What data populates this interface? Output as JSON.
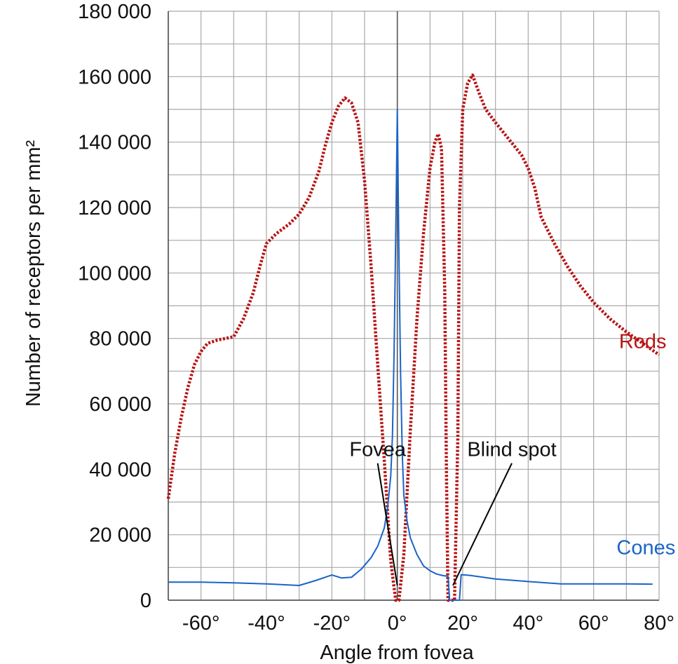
{
  "chart_data": {
    "type": "line",
    "title": "",
    "xlabel": "Angle from fovea",
    "ylabel": "Number of receptors per mm²",
    "xlim": [
      -70,
      80
    ],
    "ylim": [
      0,
      180000
    ],
    "grid": true,
    "x_ticks": [
      {
        "value": -60,
        "label": "-60°"
      },
      {
        "value": -40,
        "label": "-40°"
      },
      {
        "value": -20,
        "label": "-20°"
      },
      {
        "value": 0,
        "label": "0°"
      },
      {
        "value": 20,
        "label": "20°"
      },
      {
        "value": 40,
        "label": "40°"
      },
      {
        "value": 60,
        "label": "60°"
      },
      {
        "value": 80,
        "label": "80°"
      }
    ],
    "y_ticks": [
      {
        "value": 0,
        "label": "0"
      },
      {
        "value": 20000,
        "label": "20 000"
      },
      {
        "value": 40000,
        "label": "40 000"
      },
      {
        "value": 60000,
        "label": "60 000"
      },
      {
        "value": 80000,
        "label": "80 000"
      },
      {
        "value": 100000,
        "label": "100 000"
      },
      {
        "value": 120000,
        "label": "120 000"
      },
      {
        "value": 140000,
        "label": "140 000"
      },
      {
        "value": 160000,
        "label": "160 000"
      },
      {
        "value": 180000,
        "label": "180 000"
      }
    ],
    "series": [
      {
        "name": "Rods",
        "color": "#b81414",
        "style": "dotted",
        "points": [
          [
            -70,
            31000
          ],
          [
            -68,
            45000
          ],
          [
            -66,
            56000
          ],
          [
            -64,
            65000
          ],
          [
            -62,
            72000
          ],
          [
            -60,
            76000
          ],
          [
            -58,
            78500
          ],
          [
            -55,
            79500
          ],
          [
            -50,
            80500
          ],
          [
            -47,
            86000
          ],
          [
            -44,
            94000
          ],
          [
            -42,
            102000
          ],
          [
            -40,
            109000
          ],
          [
            -37,
            112000
          ],
          [
            -33,
            115000
          ],
          [
            -30,
            118000
          ],
          [
            -27,
            123000
          ],
          [
            -24,
            131000
          ],
          [
            -22,
            139000
          ],
          [
            -20,
            146000
          ],
          [
            -18,
            151000
          ],
          [
            -16,
            153500
          ],
          [
            -14,
            152000
          ],
          [
            -12,
            146000
          ],
          [
            -10,
            128000
          ],
          [
            -8,
            102000
          ],
          [
            -6,
            72000
          ],
          [
            -4,
            43000
          ],
          [
            -2,
            12000
          ],
          [
            -0.5,
            0
          ],
          [
            0.5,
            0
          ],
          [
            2,
            14000
          ],
          [
            4,
            52000
          ],
          [
            6,
            86000
          ],
          [
            8,
            112000
          ],
          [
            10,
            132000
          ],
          [
            11.5,
            140000
          ],
          [
            12.5,
            142500
          ],
          [
            13.5,
            138000
          ],
          [
            14.5,
            95000
          ],
          [
            15,
            40000
          ],
          [
            15.5,
            0
          ],
          [
            17.5,
            0
          ],
          [
            18.5,
            50000
          ],
          [
            19,
            120000
          ],
          [
            20,
            150000
          ],
          [
            21.5,
            158000
          ],
          [
            23,
            160500
          ],
          [
            25,
            155000
          ],
          [
            27,
            150000
          ],
          [
            30,
            146000
          ],
          [
            34,
            141000
          ],
          [
            38,
            136000
          ],
          [
            40,
            132000
          ],
          [
            42,
            126000
          ],
          [
            44,
            117000
          ],
          [
            48,
            109000
          ],
          [
            52,
            102000
          ],
          [
            56,
            96000
          ],
          [
            60,
            91000
          ],
          [
            65,
            86000
          ],
          [
            70,
            82000
          ],
          [
            75,
            78500
          ],
          [
            80,
            75000
          ]
        ]
      },
      {
        "name": "Cones",
        "color": "#1a64c8",
        "style": "solid",
        "points": [
          [
            -70,
            5500
          ],
          [
            -60,
            5500
          ],
          [
            -50,
            5300
          ],
          [
            -40,
            5000
          ],
          [
            -30,
            4500
          ],
          [
            -25,
            6000
          ],
          [
            -20,
            7700
          ],
          [
            -17,
            6800
          ],
          [
            -14,
            7000
          ],
          [
            -11,
            9500
          ],
          [
            -8,
            13000
          ],
          [
            -6,
            16500
          ],
          [
            -4,
            22000
          ],
          [
            -3,
            28000
          ],
          [
            -2,
            38000
          ],
          [
            -1.5,
            50000
          ],
          [
            -1,
            75000
          ],
          [
            -0.5,
            110000
          ],
          [
            0,
            150000
          ],
          [
            0.5,
            105000
          ],
          [
            1,
            70000
          ],
          [
            1.5,
            45000
          ],
          [
            2,
            32000
          ],
          [
            3,
            24000
          ],
          [
            4,
            19000
          ],
          [
            6,
            14000
          ],
          [
            8,
            10500
          ],
          [
            10,
            9000
          ],
          [
            12,
            8000
          ],
          [
            14,
            7500
          ],
          [
            15.5,
            7300
          ],
          [
            16,
            0
          ],
          [
            19,
            0
          ],
          [
            19.5,
            7800
          ],
          [
            22,
            7600
          ],
          [
            30,
            6500
          ],
          [
            40,
            5700
          ],
          [
            50,
            5000
          ],
          [
            60,
            5000
          ],
          [
            70,
            5000
          ],
          [
            78,
            4900
          ]
        ]
      }
    ],
    "series_labels": [
      {
        "series": "Rods",
        "text": "Rods",
        "x": 75,
        "y": 77000
      },
      {
        "series": "Cones",
        "text": "Cones",
        "x": 76,
        "y": 14000
      }
    ],
    "annotations": [
      {
        "text": "Fovea",
        "text_x": -6,
        "text_y": 44000,
        "point_x": 0,
        "point_y": 4500
      },
      {
        "text": "Blind spot",
        "text_x": 35,
        "text_y": 44000,
        "point_x": 17,
        "point_y": 4500
      }
    ]
  }
}
